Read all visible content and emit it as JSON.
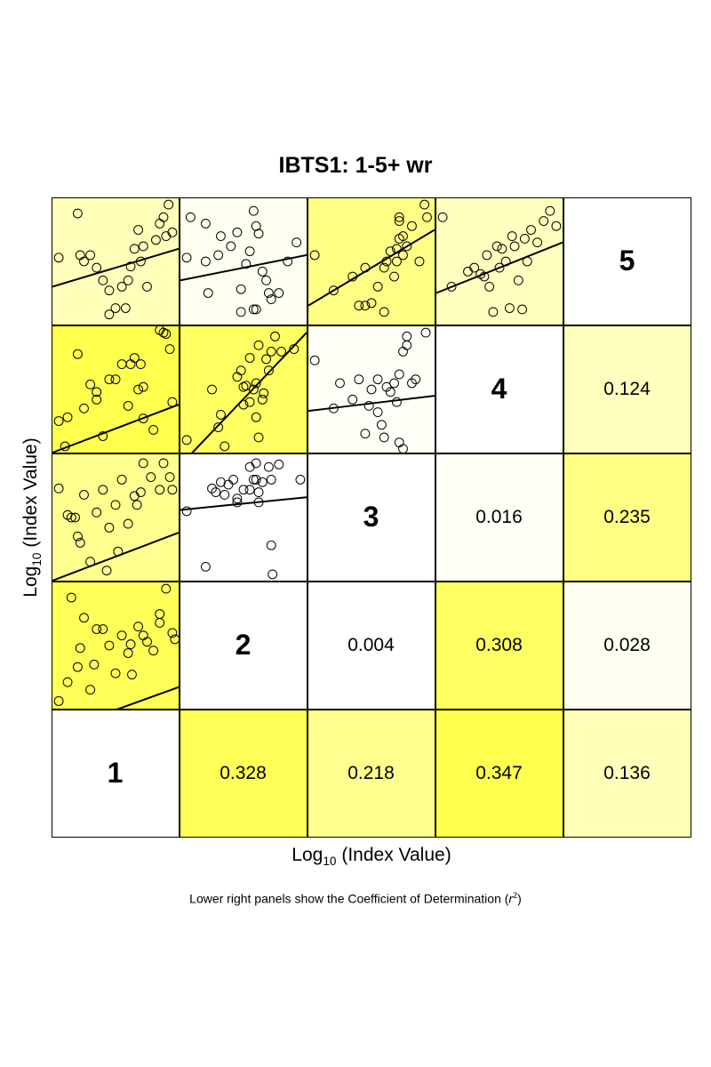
{
  "chart_data": {
    "type": "scatter",
    "layout": "scatterplot-matrix",
    "title": "IBTS1: 1-5+ wr",
    "xlabel": {
      "prefix": "Log",
      "sub": "10",
      "suffix": " (Index Value)"
    },
    "ylabel": {
      "prefix": "Log",
      "sub": "10",
      "suffix": " (Index Value)"
    },
    "footnote": {
      "text": "Lower right panels show the Coefficient of Determination (",
      "symbol": "r",
      "sup": "2",
      "close": ")"
    },
    "variables": [
      "1",
      "2",
      "3",
      "4",
      "5"
    ],
    "color_scale": {
      "low": "#ffffff",
      "high": "#ffff4d",
      "max_r2": 0.347
    },
    "pairs": [
      {
        "a": "1",
        "b": "2",
        "r2": "0.328",
        "slope": 0.36,
        "intercept": -0.19,
        "points": [
          [
            0.05,
            0.06
          ],
          [
            0.12,
            0.21
          ],
          [
            0.2,
            0.33
          ],
          [
            0.3,
            0.15
          ],
          [
            0.22,
            0.48
          ],
          [
            0.15,
            0.88
          ],
          [
            0.35,
            0.63
          ],
          [
            0.4,
            0.63
          ],
          [
            0.45,
            0.5
          ],
          [
            0.5,
            0.28
          ],
          [
            0.55,
            0.58
          ],
          [
            0.6,
            0.44
          ],
          [
            0.62,
            0.51
          ],
          [
            0.68,
            0.65
          ],
          [
            0.72,
            0.58
          ],
          [
            0.75,
            0.53
          ],
          [
            0.8,
            0.46
          ],
          [
            0.85,
            0.68
          ],
          [
            0.9,
            0.95
          ],
          [
            0.95,
            0.6
          ],
          [
            0.97,
            0.55
          ],
          [
            0.25,
            0.72
          ],
          [
            0.33,
            0.35
          ],
          [
            0.63,
            0.27
          ],
          [
            0.85,
            0.75
          ]
        ]
      },
      {
        "a": "1",
        "b": "3",
        "r2": "0.218",
        "slope": 0.38,
        "intercept": 0.0,
        "points": [
          [
            0.05,
            0.73
          ],
          [
            0.12,
            0.52
          ],
          [
            0.18,
            0.5
          ],
          [
            0.22,
            0.3
          ],
          [
            0.25,
            0.68
          ],
          [
            0.3,
            0.15
          ],
          [
            0.35,
            0.54
          ],
          [
            0.4,
            0.72
          ],
          [
            0.45,
            0.42
          ],
          [
            0.5,
            0.6
          ],
          [
            0.52,
            0.23
          ],
          [
            0.55,
            0.8
          ],
          [
            0.6,
            0.45
          ],
          [
            0.65,
            0.67
          ],
          [
            0.7,
            0.7
          ],
          [
            0.72,
            0.93
          ],
          [
            0.78,
            0.82
          ],
          [
            0.85,
            0.72
          ],
          [
            0.88,
            0.93
          ],
          [
            0.93,
            0.82
          ],
          [
            0.95,
            0.72
          ],
          [
            0.2,
            0.35
          ],
          [
            0.43,
            0.08
          ],
          [
            0.67,
            0.6
          ],
          [
            0.15,
            0.5
          ]
        ]
      },
      {
        "a": "1",
        "b": "4",
        "r2": "0.347",
        "slope": 0.38,
        "intercept": 0.0,
        "points": [
          [
            0.05,
            0.25
          ],
          [
            0.1,
            0.05
          ],
          [
            0.12,
            0.28
          ],
          [
            0.2,
            0.78
          ],
          [
            0.25,
            0.35
          ],
          [
            0.3,
            0.54
          ],
          [
            0.35,
            0.42
          ],
          [
            0.35,
            0.48
          ],
          [
            0.4,
            0.13
          ],
          [
            0.45,
            0.58
          ],
          [
            0.5,
            0.58
          ],
          [
            0.55,
            0.7
          ],
          [
            0.6,
            0.37
          ],
          [
            0.62,
            0.7
          ],
          [
            0.65,
            0.75
          ],
          [
            0.68,
            0.5
          ],
          [
            0.7,
            0.7
          ],
          [
            0.72,
            0.27
          ],
          [
            0.8,
            0.18
          ],
          [
            0.85,
            0.97
          ],
          [
            0.88,
            0.95
          ],
          [
            0.9,
            0.94
          ],
          [
            0.93,
            0.82
          ],
          [
            0.95,
            0.4
          ],
          [
            0.72,
            0.52
          ]
        ]
      },
      {
        "a": "1",
        "b": "5",
        "r2": "0.136",
        "slope": 0.3,
        "intercept": 0.3,
        "points": [
          [
            0.05,
            0.53
          ],
          [
            0.2,
            0.88
          ],
          [
            0.22,
            0.55
          ],
          [
            0.25,
            0.5
          ],
          [
            0.35,
            0.45
          ],
          [
            0.4,
            0.35
          ],
          [
            0.45,
            0.27
          ],
          [
            0.45,
            0.08
          ],
          [
            0.5,
            0.13
          ],
          [
            0.55,
            0.3
          ],
          [
            0.58,
            0.13
          ],
          [
            0.6,
            0.35
          ],
          [
            0.62,
            0.46
          ],
          [
            0.65,
            0.6
          ],
          [
            0.68,
            0.75
          ],
          [
            0.7,
            0.5
          ],
          [
            0.72,
            0.62
          ],
          [
            0.75,
            0.3
          ],
          [
            0.82,
            0.67
          ],
          [
            0.85,
            0.8
          ],
          [
            0.88,
            0.85
          ],
          [
            0.9,
            0.7
          ],
          [
            0.92,
            0.95
          ],
          [
            0.95,
            0.73
          ],
          [
            0.3,
            0.55
          ]
        ]
      },
      {
        "a": "2",
        "b": "3",
        "r2": "0.004",
        "slope": 0.1,
        "intercept": 0.56,
        "points": [
          [
            0.05,
            0.55
          ],
          [
            0.2,
            0.11
          ],
          [
            0.25,
            0.73
          ],
          [
            0.28,
            0.7
          ],
          [
            0.32,
            0.78
          ],
          [
            0.35,
            0.68
          ],
          [
            0.38,
            0.76
          ],
          [
            0.42,
            0.8
          ],
          [
            0.45,
            0.62
          ],
          [
            0.45,
            0.65
          ],
          [
            0.55,
            0.9
          ],
          [
            0.55,
            0.72
          ],
          [
            0.58,
            0.8
          ],
          [
            0.6,
            0.8
          ],
          [
            0.6,
            0.93
          ],
          [
            0.62,
            0.7
          ],
          [
            0.62,
            0.62
          ],
          [
            0.65,
            0.78
          ],
          [
            0.7,
            0.9
          ],
          [
            0.72,
            0.8
          ],
          [
            0.72,
            0.28
          ],
          [
            0.73,
            0.05
          ],
          [
            0.78,
            0.92
          ],
          [
            0.95,
            0.8
          ],
          [
            0.5,
            0.72
          ]
        ]
      },
      {
        "a": "2",
        "b": "4",
        "r2": "0.308",
        "slope": 1.05,
        "intercept": -0.1,
        "points": [
          [
            0.05,
            0.1
          ],
          [
            0.25,
            0.5
          ],
          [
            0.3,
            0.2
          ],
          [
            0.32,
            0.3
          ],
          [
            0.35,
            0.05
          ],
          [
            0.45,
            0.6
          ],
          [
            0.48,
            0.65
          ],
          [
            0.5,
            0.52
          ],
          [
            0.5,
            0.38
          ],
          [
            0.52,
            0.53
          ],
          [
            0.55,
            0.4
          ],
          [
            0.55,
            0.75
          ],
          [
            0.58,
            0.5
          ],
          [
            0.6,
            0.55
          ],
          [
            0.6,
            0.28
          ],
          [
            0.62,
            0.12
          ],
          [
            0.62,
            0.85
          ],
          [
            0.65,
            0.42
          ],
          [
            0.68,
            0.74
          ],
          [
            0.7,
            0.65
          ],
          [
            0.72,
            0.8
          ],
          [
            0.75,
            0.92
          ],
          [
            0.8,
            0.8
          ],
          [
            0.9,
            0.82
          ],
          [
            0.66,
            0.47
          ]
        ]
      },
      {
        "a": "2",
        "b": "5",
        "r2": "0.028",
        "slope": 0.2,
        "intercept": 0.35,
        "points": [
          [
            0.05,
            0.53
          ],
          [
            0.08,
            0.85
          ],
          [
            0.2,
            0.8
          ],
          [
            0.2,
            0.5
          ],
          [
            0.22,
            0.25
          ],
          [
            0.3,
            0.55
          ],
          [
            0.32,
            0.7
          ],
          [
            0.4,
            0.62
          ],
          [
            0.45,
            0.73
          ],
          [
            0.48,
            0.28
          ],
          [
            0.52,
            0.48
          ],
          [
            0.55,
            0.58
          ],
          [
            0.58,
            0.9
          ],
          [
            0.6,
            0.78
          ],
          [
            0.62,
            0.72
          ],
          [
            0.65,
            0.42
          ],
          [
            0.68,
            0.35
          ],
          [
            0.7,
            0.25
          ],
          [
            0.72,
            0.2
          ],
          [
            0.78,
            0.25
          ],
          [
            0.85,
            0.5
          ],
          [
            0.92,
            0.65
          ],
          [
            0.58,
            0.12
          ],
          [
            0.6,
            0.12
          ],
          [
            0.48,
            0.1
          ]
        ]
      },
      {
        "a": "3",
        "b": "4",
        "r2": "0.016",
        "slope": 0.12,
        "intercept": 0.33,
        "points": [
          [
            0.05,
            0.73
          ],
          [
            0.2,
            0.35
          ],
          [
            0.25,
            0.55
          ],
          [
            0.35,
            0.42
          ],
          [
            0.4,
            0.58
          ],
          [
            0.45,
            0.15
          ],
          [
            0.48,
            0.37
          ],
          [
            0.5,
            0.5
          ],
          [
            0.55,
            0.32
          ],
          [
            0.55,
            0.58
          ],
          [
            0.58,
            0.22
          ],
          [
            0.6,
            0.12
          ],
          [
            0.62,
            0.52
          ],
          [
            0.65,
            0.48
          ],
          [
            0.68,
            0.55
          ],
          [
            0.7,
            0.4
          ],
          [
            0.72,
            0.08
          ],
          [
            0.72,
            0.62
          ],
          [
            0.75,
            0.03
          ],
          [
            0.75,
            0.8
          ],
          [
            0.78,
            0.85
          ],
          [
            0.78,
            0.92
          ],
          [
            0.82,
            0.55
          ],
          [
            0.85,
            0.58
          ],
          [
            0.93,
            0.95
          ]
        ]
      },
      {
        "a": "3",
        "b": "5",
        "r2": "0.235",
        "slope": 0.6,
        "intercept": 0.15,
        "points": [
          [
            0.05,
            0.55
          ],
          [
            0.2,
            0.27
          ],
          [
            0.35,
            0.38
          ],
          [
            0.4,
            0.15
          ],
          [
            0.45,
            0.45
          ],
          [
            0.45,
            0.15
          ],
          [
            0.5,
            0.17
          ],
          [
            0.55,
            0.3
          ],
          [
            0.6,
            0.1
          ],
          [
            0.6,
            0.45
          ],
          [
            0.62,
            0.5
          ],
          [
            0.65,
            0.58
          ],
          [
            0.68,
            0.38
          ],
          [
            0.7,
            0.6
          ],
          [
            0.72,
            0.68
          ],
          [
            0.72,
            0.82
          ],
          [
            0.72,
            0.85
          ],
          [
            0.75,
            0.7
          ],
          [
            0.75,
            0.55
          ],
          [
            0.78,
            0.62
          ],
          [
            0.82,
            0.78
          ],
          [
            0.88,
            0.5
          ],
          [
            0.92,
            0.95
          ],
          [
            0.94,
            0.85
          ],
          [
            0.7,
            0.5
          ]
        ]
      },
      {
        "a": "4",
        "b": "5",
        "r2": "0.124",
        "slope": 0.4,
        "intercept": 0.25,
        "points": [
          [
            0.05,
            0.85
          ],
          [
            0.12,
            0.3
          ],
          [
            0.25,
            0.42
          ],
          [
            0.3,
            0.45
          ],
          [
            0.35,
            0.4
          ],
          [
            0.38,
            0.38
          ],
          [
            0.4,
            0.55
          ],
          [
            0.42,
            0.3
          ],
          [
            0.45,
            0.1
          ],
          [
            0.48,
            0.62
          ],
          [
            0.5,
            0.45
          ],
          [
            0.52,
            0.6
          ],
          [
            0.55,
            0.5
          ],
          [
            0.58,
            0.13
          ],
          [
            0.6,
            0.7
          ],
          [
            0.62,
            0.62
          ],
          [
            0.65,
            0.35
          ],
          [
            0.68,
            0.12
          ],
          [
            0.7,
            0.68
          ],
          [
            0.72,
            0.5
          ],
          [
            0.75,
            0.75
          ],
          [
            0.8,
            0.65
          ],
          [
            0.85,
            0.82
          ],
          [
            0.9,
            0.9
          ],
          [
            0.95,
            0.78
          ]
        ]
      }
    ]
  }
}
